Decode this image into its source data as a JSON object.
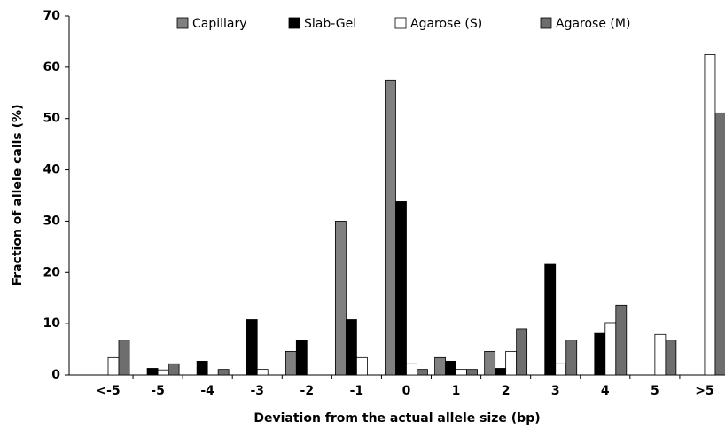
{
  "chart_data": {
    "type": "bar",
    "categories": [
      "<-5",
      "-5",
      "-4",
      "-3",
      "-2",
      "-1",
      "0",
      "1",
      "2",
      "3",
      "4",
      "5",
      ">5"
    ],
    "series": [
      {
        "name": "Capillary",
        "color": "#808080",
        "values": [
          0,
          0,
          0,
          0,
          4.6,
          30,
          57.5,
          3.4,
          4.6,
          0,
          0,
          0,
          0
        ]
      },
      {
        "name": "Slab-Gel",
        "color": "#000000",
        "values": [
          0,
          1.3,
          2.7,
          10.8,
          6.8,
          10.8,
          33.8,
          2.7,
          1.3,
          21.6,
          8.1,
          0,
          0
        ]
      },
      {
        "name": "Agarose (S)",
        "color": "#ffffff",
        "values": [
          3.4,
          1.0,
          0,
          1.1,
          0,
          3.4,
          2.2,
          1.1,
          4.6,
          2.2,
          10.2,
          7.9,
          62.5
        ]
      },
      {
        "name": "Agarose (M)",
        "color": "#6e6e6e",
        "values": [
          6.8,
          2.2,
          1.1,
          0,
          0,
          0,
          1.1,
          1.1,
          9.0,
          6.8,
          13.6,
          6.8,
          51.1
        ]
      }
    ],
    "xlabel": "Deviation from the actual allele size (bp)",
    "ylabel": "Fraction of allele calls (%)",
    "ylim": [
      0,
      70
    ],
    "yticks": [
      0,
      10,
      20,
      30,
      40,
      50,
      60,
      70
    ],
    "grid": false,
    "legend": "top"
  }
}
